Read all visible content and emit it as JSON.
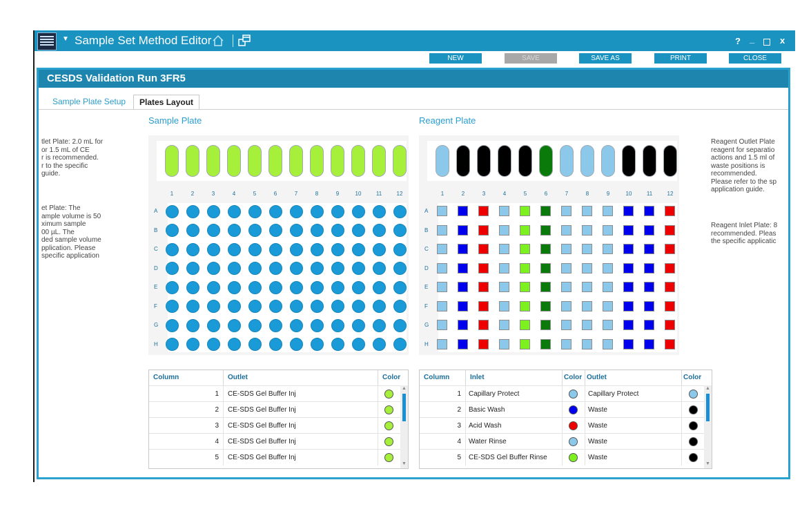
{
  "window": {
    "title": "Sample Set Method Editor",
    "controls": {
      "help": "?",
      "minimize": "_",
      "close": "x"
    }
  },
  "toolbar": {
    "new_label": "NEW",
    "save_label": "SAVE",
    "save_as_label": "SAVE AS",
    "print_label": "PRINT",
    "close_label": "CLOSE"
  },
  "run_title": "CESDS Validation Run 3FR5",
  "tabs": [
    {
      "label": "Sample Plate Setup",
      "active": false
    },
    {
      "label": "Plates Layout",
      "active": true
    }
  ],
  "sample_plate": {
    "title": "Sample Plate",
    "columns": [
      "1",
      "2",
      "3",
      "4",
      "5",
      "6",
      "7",
      "8",
      "9",
      "10",
      "11",
      "12"
    ],
    "rows": [
      "A",
      "B",
      "C",
      "D",
      "E",
      "F",
      "G",
      "H"
    ],
    "vial_colors": [
      "#a6f03c",
      "#a6f03c",
      "#a6f03c",
      "#a6f03c",
      "#a6f03c",
      "#a6f03c",
      "#a6f03c",
      "#a6f03c",
      "#a6f03c",
      "#a6f03c",
      "#a6f03c",
      "#a6f03c"
    ],
    "well_color": "#1a9ad6"
  },
  "reagent_plate": {
    "title": "Reagent Plate",
    "columns": [
      "1",
      "2",
      "3",
      "4",
      "5",
      "6",
      "7",
      "8",
      "9",
      "10",
      "11",
      "12"
    ],
    "rows": [
      "A",
      "B",
      "C",
      "D",
      "E",
      "F",
      "G",
      "H"
    ],
    "vial_colors": [
      "#8cc8ea",
      "#000000",
      "#000000",
      "#000000",
      "#000000",
      "#0a7a0a",
      "#8cc8ea",
      "#8cc8ea",
      "#8cc8ea",
      "#000000",
      "#000000",
      "#000000"
    ],
    "well_colors": [
      "#8cc8ea",
      "#0000ee",
      "#ee0000",
      "#8cc8ea",
      "#7df020",
      "#0a7a0a",
      "#8cc8ea",
      "#8cc8ea",
      "#8cc8ea",
      "#0000ee",
      "#0000ee",
      "#ee0000"
    ]
  },
  "left_notes": {
    "outlet": [
      "tlet Plate: 2.0 mL for",
      "or 1.5 mL of CE",
      "r is recommended.",
      "r to the specific",
      "guide."
    ],
    "inlet": [
      "et Plate: The",
      "ample volume is 50",
      "ximum sample",
      "00 µL. The",
      "ded sample volume",
      "pplication. Please",
      "specific application"
    ]
  },
  "right_notes": {
    "outlet": [
      "Reagent Outlet Plate",
      "reagent for separatio",
      "actions and 1.5 ml of",
      "waste positions is",
      "recommended.",
      "Please refer to the sp",
      "application guide."
    ],
    "inlet": [
      "Reagent Inlet Plate: 8",
      "recommended. Pleas",
      "the specific applicatic"
    ]
  },
  "sample_table": {
    "headers": {
      "column": "Column",
      "outlet": "Outlet",
      "color": "Color"
    },
    "rows": [
      {
        "column": "1",
        "outlet": "CE-SDS Gel Buffer Inj",
        "color": "#a6f03c"
      },
      {
        "column": "2",
        "outlet": "CE-SDS Gel Buffer Inj",
        "color": "#a6f03c"
      },
      {
        "column": "3",
        "outlet": "CE-SDS Gel Buffer Inj",
        "color": "#a6f03c"
      },
      {
        "column": "4",
        "outlet": "CE-SDS Gel Buffer Inj",
        "color": "#a6f03c"
      },
      {
        "column": "5",
        "outlet": "CE-SDS Gel Buffer Inj",
        "color": "#a6f03c"
      }
    ]
  },
  "reagent_table": {
    "headers": {
      "column": "Column",
      "inlet": "Inlet",
      "color": "Color",
      "outlet": "Outlet",
      "color2": "Color"
    },
    "rows": [
      {
        "column": "1",
        "inlet": "Capillary Protect",
        "inlet_color": "#8cc8ea",
        "outlet": "Capillary Protect",
        "outlet_color": "#8cc8ea"
      },
      {
        "column": "2",
        "inlet": "Basic Wash",
        "inlet_color": "#0000ee",
        "outlet": "Waste",
        "outlet_color": "#000000"
      },
      {
        "column": "3",
        "inlet": "Acid Wash",
        "inlet_color": "#ee0000",
        "outlet": "Waste",
        "outlet_color": "#000000"
      },
      {
        "column": "4",
        "inlet": "Water Rinse",
        "inlet_color": "#8cc8ea",
        "outlet": "Waste",
        "outlet_color": "#000000"
      },
      {
        "column": "5",
        "inlet": "CE-SDS Gel Buffer Rinse",
        "inlet_color": "#7df020",
        "outlet": "Waste",
        "outlet_color": "#000000"
      }
    ]
  }
}
